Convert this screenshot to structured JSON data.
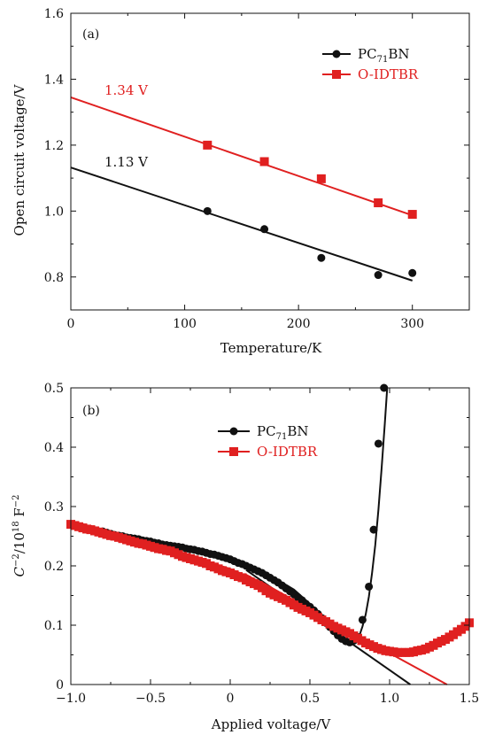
{
  "colors": {
    "black_series": "#111111",
    "red_series": "#e02020",
    "axis": "#111111"
  },
  "chart_data": [
    {
      "type": "line",
      "panel_label": "(a)",
      "xlabel": "Temperature/K",
      "ylabel": "Open circuit voltage/V",
      "xlim": [
        0,
        350
      ],
      "ylim": [
        0.7,
        1.6
      ],
      "xticks": [
        0,
        100,
        200,
        300
      ],
      "yticks": [
        0.8,
        1.0,
        1.2,
        1.4,
        1.6
      ],
      "xtick_labels": [
        "0",
        "100",
        "200",
        "300"
      ],
      "ytick_labels": [
        "0.8",
        "1.0",
        "1.2",
        "1.4",
        "1.6"
      ],
      "legend_position": "top-right",
      "series": [
        {
          "name_main": "PC",
          "name_sub": "71",
          "name_tail": "BN",
          "marker": "circle",
          "color": "#111111",
          "x": [
            120,
            170,
            220,
            270,
            300
          ],
          "y": [
            1.0,
            0.945,
            0.858,
            0.806,
            0.812
          ],
          "fit": {
            "x": [
              0,
              300
            ],
            "y": [
              1.132,
              0.789
            ]
          }
        },
        {
          "name": "O-IDTBR",
          "marker": "square",
          "color": "#e02020",
          "x": [
            120,
            170,
            220,
            270,
            300
          ],
          "y": [
            1.2,
            1.15,
            1.098,
            1.025,
            0.99
          ],
          "fit": {
            "x": [
              0,
              300
            ],
            "y": [
              1.345,
              0.987
            ]
          }
        }
      ],
      "annotations": [
        {
          "text": "1.34 V",
          "x": 10,
          "y": 1.355,
          "color": "#e02020"
        },
        {
          "text": "1.13 V",
          "x": 10,
          "y": 1.145,
          "color": "#111111"
        }
      ]
    },
    {
      "type": "line",
      "panel_label": "(b)",
      "xlabel": "Applied voltage/V",
      "ylabel": {
        "c": "C",
        "c_exp": "−2",
        "mid": "/10",
        "ten_exp": "18",
        "f": " F",
        "f_exp": "−2"
      },
      "xlim": [
        -1.0,
        1.5
      ],
      "ylim": [
        0,
        0.5
      ],
      "xticks": [
        -1.0,
        -0.5,
        0,
        0.5,
        1.0,
        1.5
      ],
      "yticks": [
        0,
        0.1,
        0.2,
        0.3,
        0.4,
        0.5
      ],
      "xtick_labels": [
        "−1.0",
        "−0.5",
        "0",
        "0.5",
        "1.0",
        "1.5"
      ],
      "ytick_labels": [
        "0",
        "0.1",
        "0.2",
        "0.3",
        "0.4",
        "0.5"
      ],
      "legend_position": "top-center",
      "series": [
        {
          "name_main": "PC",
          "name_sub": "71",
          "name_tail": "BN",
          "marker": "circle",
          "color": "#111111",
          "curve": {
            "x": [
              -1.0,
              -0.8,
              -0.6,
              -0.4,
              -0.2,
              0.0,
              0.2,
              0.4,
              0.55,
              0.65,
              0.72,
              0.76,
              0.79,
              0.81,
              0.83,
              0.85,
              0.87,
              0.89,
              0.91,
              0.93,
              0.95,
              0.97,
              0.985
            ],
            "y": [
              0.27,
              0.258,
              0.247,
              0.236,
              0.226,
              0.213,
              0.192,
              0.16,
              0.124,
              0.096,
              0.078,
              0.072,
              0.074,
              0.082,
              0.098,
              0.118,
              0.148,
              0.188,
              0.235,
              0.295,
              0.365,
              0.44,
              0.5
            ]
          },
          "points": {
            "x": [
              -1.0,
              -0.975,
              -0.95,
              -0.925,
              -0.9,
              -0.875,
              -0.85,
              -0.825,
              -0.8,
              -0.775,
              -0.75,
              -0.725,
              -0.7,
              -0.675,
              -0.65,
              -0.625,
              -0.6,
              -0.575,
              -0.55,
              -0.525,
              -0.5,
              -0.475,
              -0.45,
              -0.425,
              -0.4,
              -0.375,
              -0.35,
              -0.325,
              -0.3,
              -0.275,
              -0.25,
              -0.225,
              -0.2,
              -0.175,
              -0.15,
              -0.125,
              -0.1,
              -0.075,
              -0.05,
              -0.025,
              0.0,
              0.025,
              0.05,
              0.075,
              0.1,
              0.125,
              0.15,
              0.175,
              0.2,
              0.225,
              0.25,
              0.275,
              0.3,
              0.325,
              0.35,
              0.375,
              0.4,
              0.425,
              0.45,
              0.475,
              0.5,
              0.525,
              0.55,
              0.575,
              0.6,
              0.625,
              0.65,
              0.675,
              0.7,
              0.725,
              0.75,
              0.775,
              0.8,
              0.83,
              0.87,
              0.9,
              0.93,
              0.965
            ],
            "y": [
              0.27,
              0.268,
              0.266,
              0.265,
              0.263,
              0.262,
              0.26,
              0.258,
              0.258,
              0.256,
              0.254,
              0.252,
              0.251,
              0.25,
              0.248,
              0.247,
              0.246,
              0.245,
              0.243,
              0.242,
              0.241,
              0.239,
              0.238,
              0.236,
              0.235,
              0.234,
              0.233,
              0.232,
              0.231,
              0.229,
              0.228,
              0.227,
              0.225,
              0.224,
              0.222,
              0.22,
              0.219,
              0.217,
              0.215,
              0.213,
              0.211,
              0.208,
              0.205,
              0.203,
              0.2,
              0.197,
              0.194,
              0.191,
              0.188,
              0.184,
              0.18,
              0.176,
              0.172,
              0.167,
              0.162,
              0.157,
              0.152,
              0.147,
              0.142,
              0.136,
              0.131,
              0.125,
              0.119,
              0.112,
              0.104,
              0.097,
              0.09,
              0.083,
              0.077,
              0.073,
              0.071,
              0.074,
              0.08,
              0.109,
              0.165,
              0.261,
              0.406,
              0.5
            ]
          },
          "fit": {
            "x": [
              0.1,
              1.13
            ],
            "y": [
              0.193,
              0.0
            ]
          }
        },
        {
          "name": "O-IDTBR",
          "marker": "square",
          "color": "#e02020",
          "curve": {
            "x": [
              -1.0,
              -0.8,
              -0.6,
              -0.4,
              -0.2,
              0.0,
              0.2,
              0.4,
              0.6,
              0.8,
              0.9,
              1.0,
              1.1,
              1.2,
              1.3,
              1.4,
              1.5
            ],
            "y": [
              0.27,
              0.255,
              0.24,
              0.227,
              0.212,
              0.195,
              0.172,
              0.142,
              0.11,
              0.082,
              0.065,
              0.055,
              0.052,
              0.058,
              0.07,
              0.085,
              0.104
            ]
          },
          "points": {
            "x": [
              -1.0,
              -0.975,
              -0.95,
              -0.925,
              -0.9,
              -0.875,
              -0.85,
              -0.825,
              -0.8,
              -0.775,
              -0.75,
              -0.725,
              -0.7,
              -0.675,
              -0.65,
              -0.625,
              -0.6,
              -0.575,
              -0.55,
              -0.525,
              -0.5,
              -0.475,
              -0.45,
              -0.425,
              -0.4,
              -0.375,
              -0.35,
              -0.325,
              -0.3,
              -0.275,
              -0.25,
              -0.225,
              -0.2,
              -0.175,
              -0.15,
              -0.125,
              -0.1,
              -0.075,
              -0.05,
              -0.025,
              0.0,
              0.025,
              0.05,
              0.075,
              0.1,
              0.125,
              0.15,
              0.175,
              0.2,
              0.225,
              0.25,
              0.275,
              0.3,
              0.325,
              0.35,
              0.375,
              0.4,
              0.425,
              0.45,
              0.475,
              0.5,
              0.525,
              0.55,
              0.575,
              0.6,
              0.625,
              0.65,
              0.675,
              0.7,
              0.725,
              0.75,
              0.775,
              0.8,
              0.825,
              0.85,
              0.875,
              0.9,
              0.925,
              0.95,
              0.975,
              1.0,
              1.025,
              1.05,
              1.075,
              1.1,
              1.125,
              1.15,
              1.175,
              1.2,
              1.225,
              1.25,
              1.275,
              1.3,
              1.325,
              1.35,
              1.375,
              1.4,
              1.425,
              1.45,
              1.475,
              1.5
            ],
            "y": [
              0.27,
              0.268,
              0.266,
              0.264,
              0.262,
              0.261,
              0.259,
              0.257,
              0.255,
              0.253,
              0.251,
              0.25,
              0.248,
              0.246,
              0.244,
              0.242,
              0.24,
              0.238,
              0.237,
              0.235,
              0.233,
              0.231,
              0.229,
              0.228,
              0.226,
              0.225,
              0.222,
              0.219,
              0.216,
              0.214,
              0.212,
              0.21,
              0.208,
              0.206,
              0.204,
              0.2,
              0.198,
              0.195,
              0.192,
              0.19,
              0.188,
              0.185,
              0.182,
              0.18,
              0.176,
              0.173,
              0.17,
              0.167,
              0.163,
              0.158,
              0.154,
              0.151,
              0.148,
              0.145,
              0.142,
              0.138,
              0.134,
              0.13,
              0.127,
              0.124,
              0.121,
              0.117,
              0.113,
              0.109,
              0.106,
              0.102,
              0.098,
              0.095,
              0.092,
              0.089,
              0.086,
              0.082,
              0.078,
              0.074,
              0.07,
              0.067,
              0.064,
              0.061,
              0.059,
              0.057,
              0.056,
              0.055,
              0.054,
              0.054,
              0.054,
              0.054,
              0.055,
              0.057,
              0.058,
              0.06,
              0.063,
              0.066,
              0.07,
              0.073,
              0.076,
              0.08,
              0.084,
              0.089,
              0.093,
              0.098,
              0.104
            ]
          },
          "fit": {
            "x": [
              0.1,
              1.36
            ],
            "y": [
              0.185,
              0.0
            ]
          }
        }
      ]
    }
  ]
}
